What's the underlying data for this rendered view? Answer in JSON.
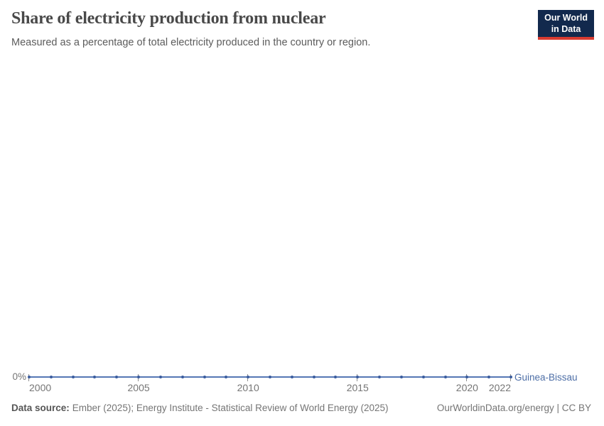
{
  "header": {
    "title": "Share of electricity production from nuclear",
    "subtitle": "Measured as a percentage of total electricity produced in the country or region."
  },
  "logo": {
    "line1": "Our World",
    "line2": "in Data"
  },
  "chart_data": {
    "type": "line",
    "title": "Share of electricity production from nuclear",
    "unit": "%",
    "x": [
      2000,
      2001,
      2002,
      2003,
      2004,
      2005,
      2006,
      2007,
      2008,
      2009,
      2010,
      2011,
      2012,
      2013,
      2014,
      2015,
      2016,
      2017,
      2018,
      2019,
      2020,
      2021,
      2022
    ],
    "series": [
      {
        "name": "Guinea-Bissau",
        "values": [
          0,
          0,
          0,
          0,
          0,
          0,
          0,
          0,
          0,
          0,
          0,
          0,
          0,
          0,
          0,
          0,
          0,
          0,
          0,
          0,
          0,
          0,
          0
        ]
      }
    ],
    "x_ticks": [
      2000,
      2005,
      2010,
      2015,
      2020,
      2022
    ],
    "y_tick_labels": [
      "0%"
    ],
    "xlim": [
      2000,
      2022
    ],
    "ylim": [
      0,
      0
    ],
    "grid": false,
    "legend_position": "line-end-label"
  },
  "colors": {
    "line": "#5577b5",
    "point": "#3a5c9e",
    "entity-label": "#4d6ea6",
    "tick": "#8f8f8f",
    "logo-bg": "#12294d",
    "logo-accent": "#d93b31"
  },
  "footer": {
    "source_label": "Data source:",
    "source_text": "Ember (2025); Energy Institute - Statistical Review of World Energy (2025)",
    "license_text": "OurWorldinData.org/energy | CC BY"
  }
}
